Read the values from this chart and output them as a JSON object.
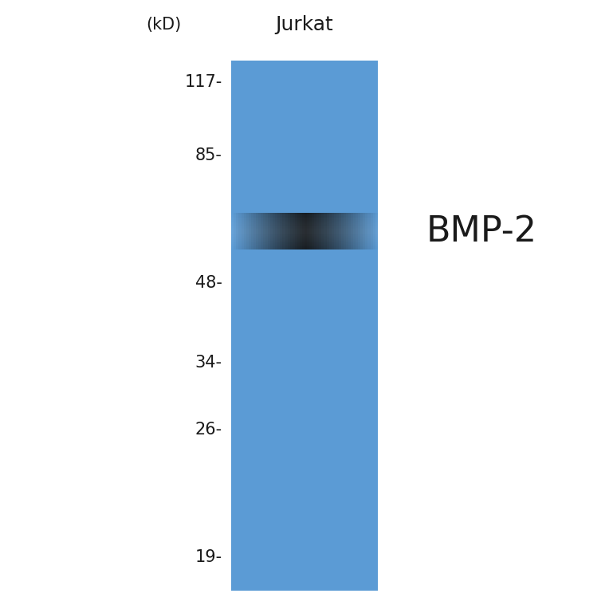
{
  "background_color": "#ffffff",
  "blot_color": "#5b9bd5",
  "band_color": "#111111",
  "text_color": "#1a1a1a",
  "axis_color": "#333333",
  "kd_label": "(kD)",
  "sample_label": "Jurkat",
  "protein_label": "BMP-2",
  "mw_markers": [
    117,
    85,
    48,
    34,
    26,
    19
  ],
  "band_mw": 63,
  "font_size_markers": 15,
  "font_size_sample": 18,
  "font_size_protein": 32,
  "font_size_kd": 15
}
